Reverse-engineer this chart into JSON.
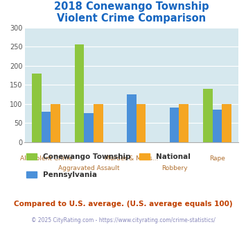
{
  "title": "2018 Conewango Township\nViolent Crime Comparison",
  "categories": [
    "All Violent Crime",
    "Aggravated Assault",
    "Murder & Mans...",
    "Robbery",
    "Rape"
  ],
  "series": {
    "Conewango Township": [
      180,
      255,
      0,
      0,
      140
    ],
    "Pennsylvania": [
      80,
      75,
      125,
      90,
      85
    ],
    "National": [
      100,
      100,
      100,
      100,
      100
    ]
  },
  "colors": {
    "Conewango Township": "#8dc63f",
    "Pennsylvania": "#4a90d9",
    "National": "#f5a623"
  },
  "ylim": [
    0,
    300
  ],
  "yticks": [
    0,
    50,
    100,
    150,
    200,
    250,
    300
  ],
  "background_color": "#d6e8ee",
  "title_color": "#1565c0",
  "xlabel_color": "#b07030",
  "ylabel_color": "#888888",
  "footnote1": "Compared to U.S. average. (U.S. average equals 100)",
  "footnote2": "© 2025 CityRating.com - https://www.cityrating.com/crime-statistics/",
  "footnote1_color": "#c04000",
  "footnote2_color": "#8888bb"
}
